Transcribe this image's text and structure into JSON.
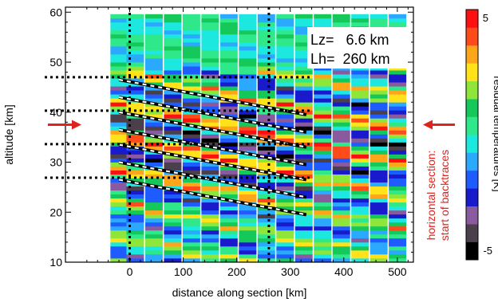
{
  "chart_data": {
    "type": "heatmap",
    "xlabel": "distance along section [km]",
    "ylabel": "altitude [km]",
    "xlim": [
      -120,
      530
    ],
    "ylim": [
      10,
      61
    ],
    "x_ticks": [
      0,
      100,
      200,
      300,
      400,
      500
    ],
    "y_ticks": [
      10,
      20,
      30,
      40,
      50,
      60
    ],
    "colorbar": {
      "label": "residual temperatures [K]",
      "range": [
        -5,
        5
      ],
      "tick_labels": [
        "5",
        "-5"
      ],
      "colors": [
        "#000000",
        "#4a3f4a",
        "#8a5a9e",
        "#1a1acd",
        "#1f5cff",
        "#2aa9ff",
        "#1de8e0",
        "#2ee88a",
        "#14c85a",
        "#8ee63a",
        "#ffe21a",
        "#ffa51a",
        "#ff4a1a",
        "#ff1010"
      ]
    },
    "annotation": {
      "line1": "Lz=   6.6 km",
      "line2": "Lh=  260 km"
    },
    "side_note": {
      "line1": "horizontal section:",
      "line2": "start of backtraces"
    },
    "columns_x": [
      -20,
      10,
      45,
      80,
      115,
      150,
      185,
      220,
      255,
      290,
      325,
      360,
      395,
      430,
      465,
      500
    ],
    "vertical_dotted_x": [
      0,
      260
    ],
    "horizontal_dotted_y": [
      47,
      40.3,
      33.6,
      26.9
    ],
    "phase_lines": [
      {
        "x": [
          -20,
          330
        ],
        "y": [
          46.5,
          39.5
        ]
      },
      {
        "x": [
          -20,
          330
        ],
        "y": [
          43.0,
          36.0
        ]
      },
      {
        "x": [
          -20,
          330
        ],
        "y": [
          40.0,
          33.0
        ]
      },
      {
        "x": [
          -20,
          330
        ],
        "y": [
          36.5,
          29.5
        ]
      },
      {
        "x": [
          -20,
          330
        ],
        "y": [
          33.5,
          26.5
        ]
      },
      {
        "x": [
          -20,
          330
        ],
        "y": [
          30.0,
          23.0
        ]
      },
      {
        "x": [
          -20,
          330
        ],
        "y": [
          26.5,
          19.5
        ]
      }
    ],
    "arrows_y": [
      37.5,
      37.5
    ]
  }
}
